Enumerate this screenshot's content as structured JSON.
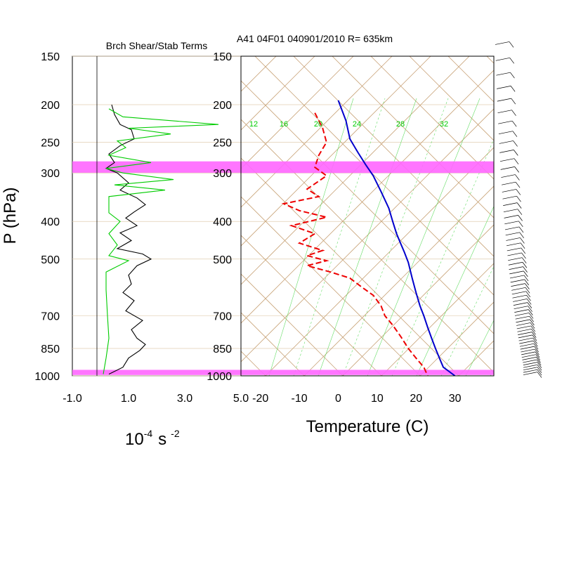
{
  "chart_data": [
    {
      "type": "line",
      "title": "Brch Shear/Stab Terms",
      "ylabel": "P (hPa)",
      "xlabel_base": "10",
      "xlabel_exp": "-4",
      "xlabel_unit": "s",
      "xlabel_unit_exp": "-2",
      "xlim": [
        -1.0,
        5.0
      ],
      "ylim": [
        1000,
        150
      ],
      "y_scale": "log",
      "x_ticks": [
        "-1.0",
        "1.0",
        "3.0",
        "5.0"
      ],
      "y_ticks": [
        "150",
        "200",
        "250",
        "300",
        "400",
        "500",
        "700",
        "850",
        "1000"
      ],
      "series": [
        {
          "color": "#000000",
          "points": [
            [
              0.4,
              200
            ],
            [
              0.5,
              212
            ],
            [
              0.7,
              225
            ],
            [
              1.1,
              232
            ],
            [
              1.2,
              245
            ],
            [
              0.7,
              255
            ],
            [
              0.3,
              268
            ],
            [
              0.5,
              282
            ],
            [
              0.2,
              292
            ],
            [
              0.6,
              300
            ],
            [
              1.0,
              318
            ],
            [
              0.7,
              332
            ],
            [
              1.3,
              348
            ],
            [
              1.6,
              362
            ],
            [
              1.2,
              378
            ],
            [
              0.9,
              392
            ],
            [
              1.3,
              410
            ],
            [
              0.7,
              428
            ],
            [
              1.1,
              448
            ],
            [
              0.6,
              470
            ],
            [
              1.5,
              485
            ],
            [
              1.8,
              500
            ],
            [
              1.3,
              520
            ],
            [
              1.0,
              550
            ],
            [
              1.1,
              580
            ],
            [
              0.8,
              610
            ],
            [
              1.2,
              640
            ],
            [
              0.9,
              680
            ],
            [
              1.5,
              720
            ],
            [
              1.1,
              760
            ],
            [
              1.3,
              800
            ],
            [
              1.6,
              830
            ],
            [
              1.4,
              860
            ],
            [
              1.0,
              900
            ],
            [
              0.8,
              950
            ],
            [
              0.3,
              990
            ]
          ]
        },
        {
          "color": "#00cc00",
          "points": [
            [
              0.3,
              205
            ],
            [
              0.8,
              215
            ],
            [
              4.2,
              225
            ],
            [
              1.0,
              230
            ],
            [
              2.5,
              238
            ],
            [
              0.6,
              248
            ],
            [
              0.9,
              258
            ],
            [
              0.3,
              270
            ],
            [
              1.8,
              282
            ],
            [
              0.2,
              292
            ],
            [
              0.8,
              300
            ],
            [
              2.6,
              312
            ],
            [
              0.5,
              322
            ],
            [
              2.3,
              332
            ],
            [
              0.3,
              345
            ],
            [
              0.3,
              380
            ],
            [
              0.7,
              400
            ],
            [
              0.3,
              430
            ],
            [
              0.6,
              460
            ],
            [
              0.3,
              490
            ],
            [
              1.0,
              505
            ],
            [
              0.2,
              540
            ],
            [
              0.2,
              600
            ],
            [
              0.25,
              700
            ],
            [
              0.3,
              800
            ],
            [
              0.2,
              900
            ],
            [
              0.1,
              990
            ]
          ]
        }
      ],
      "highlight_bands_hPa": [
        [
          280,
          300
        ],
        [
          965,
          995
        ]
      ],
      "highlight_color": "#ff66ff"
    },
    {
      "type": "line",
      "title": "A41 04F01 040901/2010 R= 635km",
      "xlabel": "Temperature (C)",
      "xlim": [
        -25,
        40
      ],
      "ylim": [
        1000,
        150
      ],
      "y_scale": "log",
      "x_ticks": [
        "-20",
        "-10",
        "0",
        "10",
        "20",
        "30"
      ],
      "y_ticks": [
        "150",
        "200",
        "250",
        "300",
        "400",
        "500",
        "700",
        "850",
        "1000"
      ],
      "mixing_ratio_labels": [
        "12",
        "16",
        "20",
        "24",
        "28",
        "32"
      ],
      "series": [
        {
          "name_role": "temperature",
          "color": "#0000cc",
          "points": [
            [
              0,
              195
            ],
            [
              2,
              220
            ],
            [
              3,
              245
            ],
            [
              5,
              265
            ],
            [
              7,
              285
            ],
            [
              9,
              305
            ],
            [
              11,
              335
            ],
            [
              13,
              370
            ],
            [
              14,
              400
            ],
            [
              15,
              430
            ],
            [
              16,
              455
            ],
            [
              17,
              480
            ],
            [
              18,
              510
            ],
            [
              19,
              560
            ],
            [
              20,
              610
            ],
            [
              21,
              660
            ],
            [
              22,
              700
            ],
            [
              23,
              750
            ],
            [
              24,
              800
            ],
            [
              25,
              850
            ],
            [
              26,
              900
            ],
            [
              27,
              950
            ],
            [
              30,
              1000
            ]
          ]
        },
        {
          "name_role": "dewpoint",
          "color": "#ee0000",
          "points": [
            [
              -6,
              210
            ],
            [
              -4,
              230
            ],
            [
              -3,
              250
            ],
            [
              -5,
              270
            ],
            [
              -6,
              290
            ],
            [
              -3,
              305
            ],
            [
              -8,
              330
            ],
            [
              -5,
              345
            ],
            [
              -14,
              360
            ],
            [
              -10,
              375
            ],
            [
              -3,
              390
            ],
            [
              -12,
              410
            ],
            [
              -6,
              430
            ],
            [
              -10,
              455
            ],
            [
              -4,
              475
            ],
            [
              -8,
              490
            ],
            [
              -3,
              505
            ],
            [
              -8,
              520
            ],
            [
              -2,
              540
            ],
            [
              3,
              560
            ],
            [
              6,
              590
            ],
            [
              9,
              620
            ],
            [
              11,
              660
            ],
            [
              12,
              700
            ],
            [
              14,
              740
            ],
            [
              16,
              790
            ],
            [
              18,
              850
            ],
            [
              20,
              900
            ],
            [
              22,
              950
            ],
            [
              23,
              1000
            ]
          ]
        }
      ],
      "highlight_bands_hPa": [
        [
          280,
          300
        ],
        [
          965,
          995
        ]
      ],
      "highlight_color": "#ff66ff"
    }
  ]
}
